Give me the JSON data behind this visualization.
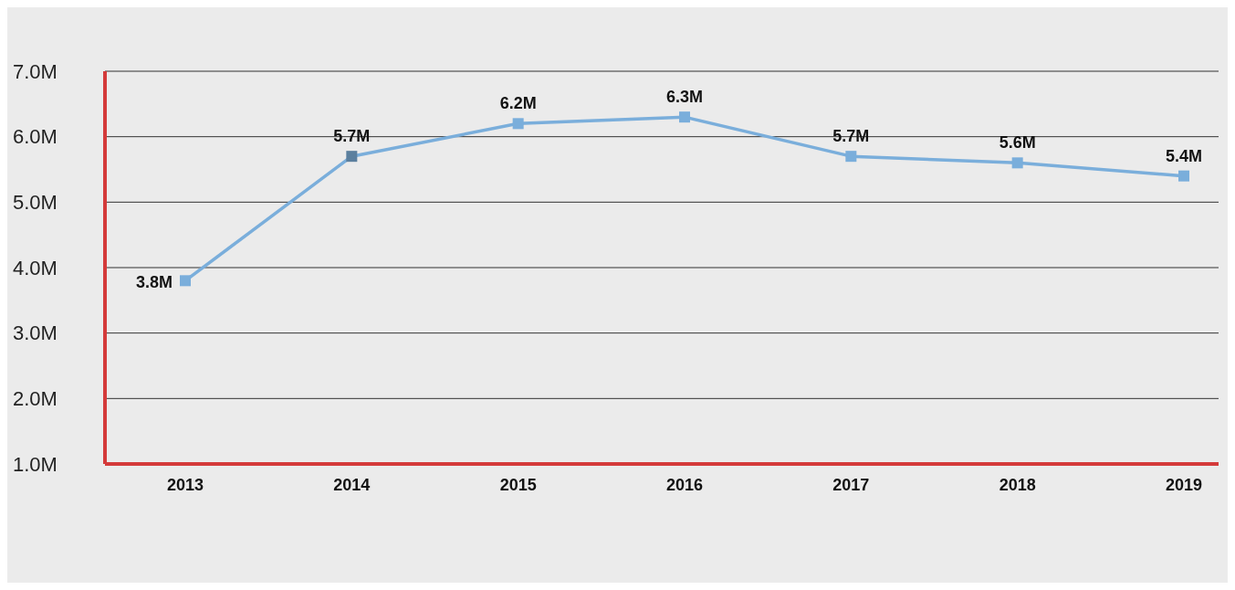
{
  "chart_data": {
    "type": "line",
    "categories": [
      "2013",
      "2014",
      "2015",
      "2016",
      "2017",
      "2018",
      "2019"
    ],
    "series": [
      {
        "color": "#7aaedb",
        "colors": [
          "#7aaedb",
          "#5b7f9e",
          "#7aaedb",
          "#7aaedb",
          "#7aaedb",
          "#7aaedb",
          "#7aaedb"
        ],
        "values": [
          3.8,
          5.7,
          6.2,
          6.3,
          5.7,
          5.6,
          5.4
        ],
        "value_labels": [
          "3.8M",
          "5.7M",
          "6.2M",
          "6.3M",
          "5.7M",
          "5.6M",
          "5.4M"
        ]
      }
    ],
    "ylim": [
      1,
      7
    ],
    "yticks": [
      {
        "value": 1,
        "label": "1.0M"
      },
      {
        "value": 2,
        "label": "2.0M"
      },
      {
        "value": 3,
        "label": "3.0M"
      },
      {
        "value": 4,
        "label": "4.0M"
      },
      {
        "value": 5,
        "label": "5.0M"
      },
      {
        "value": 6,
        "label": "6.0M"
      },
      {
        "value": 7,
        "label": "7.0M"
      }
    ],
    "grid": "y",
    "marker": "square",
    "line_style": "solid"
  }
}
